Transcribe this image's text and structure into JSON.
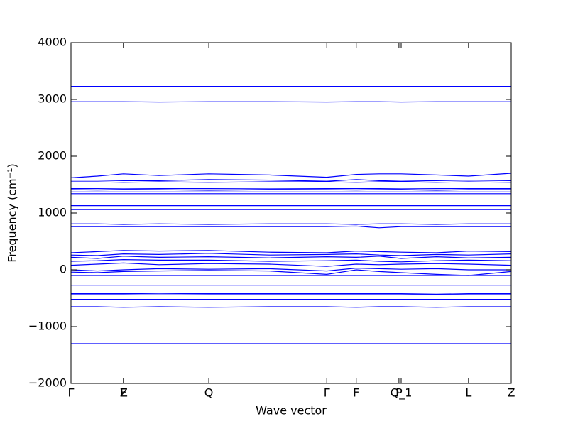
{
  "chart_data": {
    "type": "line",
    "xlabel": "Wave vector",
    "ylabel": "Frequency (cm⁻¹)",
    "xlim": [
      0,
      1
    ],
    "ylim": [
      -2000,
      4000
    ],
    "yticks": [
      {
        "value": -2000,
        "label": "−2000"
      },
      {
        "value": -1000,
        "label": "−1000"
      },
      0,
      1000,
      2000,
      3000,
      4000
    ],
    "xticks": [
      {
        "value": 0,
        "label": "Γ"
      },
      {
        "value": 0.119,
        "label": "F"
      },
      {
        "value": 0.12,
        "label": "Z"
      },
      {
        "value": 0.313,
        "label": "Q"
      },
      {
        "value": 0.581,
        "label": "Γ"
      },
      {
        "value": 0.648,
        "label": "F"
      },
      {
        "value": 0.745,
        "label": "P"
      },
      {
        "value": 0.75,
        "label": "Q_1"
      },
      {
        "value": 0.903,
        "label": "L"
      },
      {
        "value": 1,
        "label": "Z"
      }
    ],
    "x": [
      0,
      0.06,
      0.119,
      0.2,
      0.313,
      0.45,
      0.581,
      0.648,
      0.7,
      0.75,
      0.83,
      0.903,
      1.0
    ],
    "series": [
      {
        "color": "#0000ff",
        "values": [
          3230,
          3230,
          3230,
          3230,
          3230,
          3230,
          3230,
          3230,
          3230,
          3230,
          3230,
          3230,
          3230
        ]
      },
      {
        "color": "#0000ff",
        "values": [
          2960,
          2960,
          2960,
          2955,
          2960,
          2960,
          2955,
          2960,
          2960,
          2955,
          2960,
          2960,
          2960
        ]
      },
      {
        "color": "#0000ff",
        "values": [
          1620,
          1650,
          1690,
          1660,
          1690,
          1670,
          1630,
          1680,
          1690,
          1690,
          1670,
          1650,
          1700
        ]
      },
      {
        "color": "#0000ff",
        "values": [
          1580,
          1580,
          1570,
          1570,
          1590,
          1580,
          1560,
          1590,
          1570,
          1560,
          1570,
          1580,
          1570
        ]
      },
      {
        "color": "#0000ff",
        "values": [
          1550,
          1550,
          1540,
          1550,
          1540,
          1550,
          1550,
          1540,
          1550,
          1550,
          1540,
          1550,
          1540
        ]
      },
      {
        "color": "#0000ff",
        "values": [
          1430,
          1430,
          1425,
          1430,
          1430,
          1425,
          1430,
          1430,
          1430,
          1425,
          1430,
          1430,
          1430
        ]
      },
      {
        "color": "#0000ff",
        "values": [
          1410,
          1405,
          1410,
          1410,
          1400,
          1410,
          1410,
          1405,
          1410,
          1410,
          1400,
          1410,
          1410
        ]
      },
      {
        "color": "#0000ff",
        "values": [
          1370,
          1370,
          1370,
          1370,
          1370,
          1370,
          1370,
          1370,
          1370,
          1370,
          1370,
          1370,
          1370
        ]
      },
      {
        "color": "#0000ff",
        "values": [
          1340,
          1340,
          1340,
          1340,
          1340,
          1340,
          1340,
          1340,
          1340,
          1340,
          1340,
          1340,
          1340
        ]
      },
      {
        "color": "#0000ff",
        "values": [
          1130,
          1130,
          1130,
          1130,
          1130,
          1130,
          1130,
          1130,
          1130,
          1130,
          1130,
          1130,
          1130
        ]
      },
      {
        "color": "#0000ff",
        "values": [
          1060,
          1060,
          1060,
          1060,
          1060,
          1060,
          1060,
          1060,
          1060,
          1060,
          1060,
          1060,
          1060
        ]
      },
      {
        "color": "#0000ff",
        "values": [
          810,
          810,
          800,
          810,
          800,
          810,
          810,
          800,
          810,
          810,
          800,
          810,
          810
        ]
      },
      {
        "color": "#0000ff",
        "values": [
          760,
          760,
          760,
          760,
          760,
          760,
          760,
          770,
          740,
          760,
          760,
          760,
          760
        ]
      },
      {
        "color": "#0000ff",
        "values": [
          300,
          320,
          340,
          330,
          340,
          310,
          300,
          330,
          320,
          310,
          300,
          330,
          320
        ]
      },
      {
        "color": "#0000ff",
        "values": [
          260,
          250,
          280,
          270,
          290,
          260,
          270,
          280,
          260,
          250,
          270,
          260,
          280
        ]
      },
      {
        "color": "#0000ff",
        "values": [
          220,
          200,
          240,
          220,
          230,
          210,
          230,
          220,
          240,
          200,
          230,
          210,
          220
        ]
      },
      {
        "color": "#0000ff",
        "values": [
          150,
          160,
          180,
          170,
          170,
          150,
          160,
          170,
          150,
          140,
          160,
          170,
          160
        ]
      },
      {
        "color": "#0000ff",
        "values": [
          80,
          100,
          120,
          90,
          110,
          100,
          60,
          100,
          90,
          100,
          110,
          100,
          80
        ]
      },
      {
        "color": "#0000ff",
        "values": [
          0,
          -20,
          0,
          20,
          10,
          20,
          -20,
          30,
          20,
          10,
          20,
          0,
          0
        ]
      },
      {
        "color": "#0000ff",
        "values": [
          -40,
          -50,
          -30,
          -20,
          -10,
          -20,
          -80,
          0,
          -30,
          -50,
          -80,
          -100,
          -30
        ]
      },
      {
        "color": "#0000ff",
        "values": [
          -100,
          -100,
          -100,
          -100,
          -100,
          -100,
          -100,
          -100,
          -100,
          -100,
          -100,
          -100,
          -100
        ]
      },
      {
        "color": "#0000ff",
        "values": [
          -270,
          -270,
          -270,
          -270,
          -270,
          -270,
          -270,
          -270,
          -270,
          -270,
          -270,
          -270,
          -270
        ]
      },
      {
        "color": "#0000ff",
        "values": [
          -420,
          -420,
          -420,
          -415,
          -420,
          -420,
          -420,
          -420,
          -420,
          -420,
          -430,
          -420,
          -420
        ]
      },
      {
        "color": "#0000ff",
        "values": [
          -440,
          -440,
          -440,
          -440,
          -440,
          -440,
          -440,
          -440,
          -440,
          -440,
          -440,
          -440,
          -440
        ]
      },
      {
        "color": "#0000ff",
        "values": [
          -520,
          -520,
          -520,
          -520,
          -520,
          -520,
          -520,
          -520,
          -520,
          -520,
          -520,
          -520,
          -520
        ]
      },
      {
        "color": "#0000ff",
        "values": [
          -650,
          -650,
          -660,
          -650,
          -660,
          -650,
          -650,
          -660,
          -650,
          -650,
          -660,
          -650,
          -650
        ]
      },
      {
        "color": "#0000ff",
        "values": [
          -1300,
          -1300,
          -1300,
          -1300,
          -1300,
          -1300,
          -1300,
          -1300,
          -1300,
          -1300,
          -1300,
          -1300,
          -1300
        ]
      }
    ]
  }
}
